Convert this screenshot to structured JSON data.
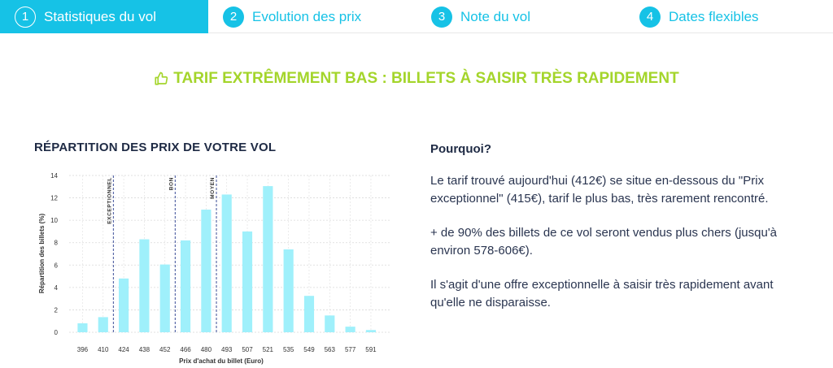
{
  "tabs": [
    {
      "number": "1",
      "label": "Statistiques du vol",
      "active": true
    },
    {
      "number": "2",
      "label": "Evolution des prix",
      "active": false
    },
    {
      "number": "3",
      "label": "Note du vol",
      "active": false
    },
    {
      "number": "4",
      "label": "Dates flexibles",
      "active": false
    }
  ],
  "headline": {
    "text": "TARIF EXTRÊMEMENT BAS : BILLETS À SAISIR TRÈS RAPIDEMENT",
    "icon": "thumbs-up-icon",
    "color": "#a4d52b"
  },
  "chart_section": {
    "title": "RÉPARTITION DES PRIX DE VOTRE VOL"
  },
  "explanation": {
    "heading": "Pourquoi?",
    "paragraphs": [
      "Le tarif trouvé aujourd'hui (412€) se situe en-dessous du \"Prix exceptionnel\" (415€), tarif le plus bas, très rarement rencontré.",
      "+ de 90% des billets de ce vol seront vendus plus chers (jusqu'à environ 578-606€).",
      "Il s'agit d'une offre exceptionnelle à saisir très rapidement avant qu'elle ne disparaisse."
    ]
  },
  "colors": {
    "accent": "#16c2e6",
    "bar": "#9ff0fb",
    "marker": "#5b6aa8",
    "headline": "#a4d52b"
  },
  "chart_data": {
    "type": "bar",
    "categories": [
      "396",
      "410",
      "424",
      "438",
      "452",
      "466",
      "480",
      "493",
      "507",
      "521",
      "535",
      "549",
      "563",
      "577",
      "591"
    ],
    "values": [
      0.8,
      1.35,
      4.8,
      8.3,
      6.05,
      8.2,
      10.95,
      12.3,
      9.0,
      13.05,
      7.4,
      3.25,
      1.5,
      0.5,
      0.2
    ],
    "xlabel": "Prix d'achat du billet (Euro)",
    "ylabel": "Répartition des billets (%)",
    "ylim": [
      0,
      14
    ],
    "yticks": [
      0,
      2,
      4,
      6,
      8,
      10,
      12,
      14
    ],
    "grid": true,
    "reference_lines": [
      {
        "label": "EXCEPTIONNEL",
        "between": [
          "410",
          "424"
        ]
      },
      {
        "label": "BON",
        "between": [
          "452",
          "466"
        ]
      },
      {
        "label": "MOYEN",
        "between": [
          "480",
          "493"
        ]
      }
    ]
  }
}
